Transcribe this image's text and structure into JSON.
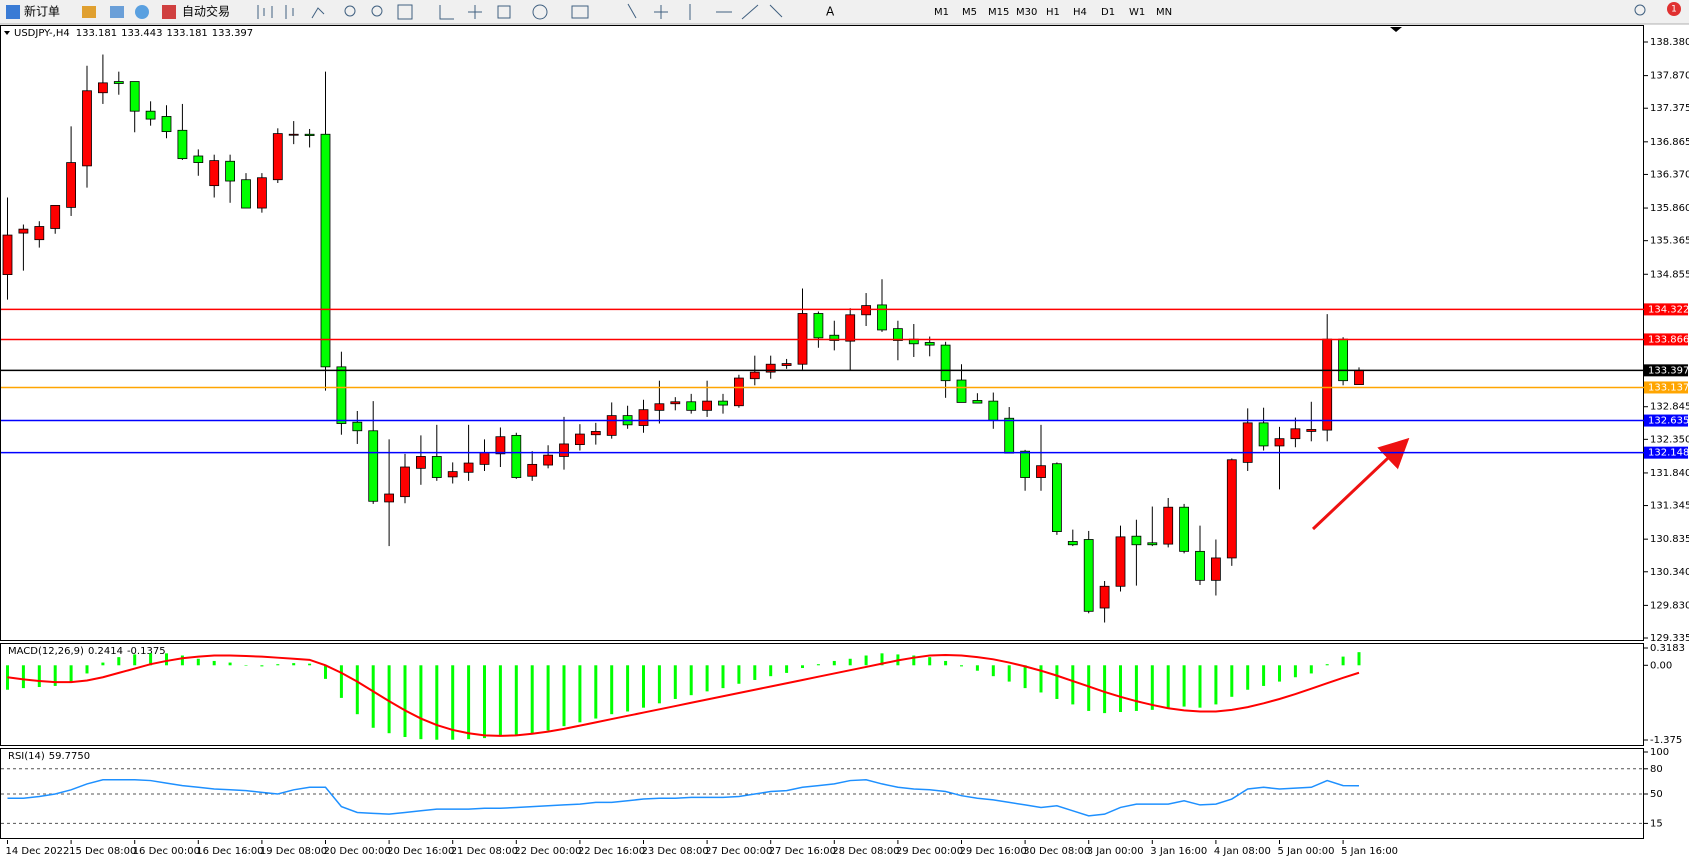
{
  "toolbar": {
    "new_order": "新订单",
    "auto_trading": "自动交易",
    "timeframes": [
      "M1",
      "M5",
      "M15",
      "M30",
      "H1",
      "H4",
      "D1",
      "W1",
      "MN"
    ],
    "notification_count": 1
  },
  "chart_data": [
    {
      "type": "candlestick",
      "title": "USDJPY-,H4",
      "up_color": "#ff0000",
      "down_color": "#00ff00",
      "categories": [
        "14 Dec 2022",
        null,
        null,
        null,
        "15 Dec 08:00",
        null,
        null,
        null,
        "16 Dec 00:00",
        null,
        null,
        null,
        "16 Dec 16:00",
        null,
        null,
        null,
        "19 Dec 08:00",
        null,
        null,
        null,
        "20 Dec 00:00",
        null,
        null,
        null,
        "20 Dec 16:00",
        null,
        null,
        null,
        "21 Dec 08:00",
        null,
        null,
        null,
        "22 Dec 00:00",
        null,
        null,
        null,
        "22 Dec 16:00",
        null,
        null,
        null,
        "23 Dec 08:00",
        null,
        null,
        null,
        "27 Dec 00:00",
        null,
        null,
        null,
        "27 Dec 16:00",
        null,
        null,
        null,
        "28 Dec 08:00",
        null,
        null,
        null,
        "29 Dec 00:00",
        null,
        null,
        null,
        "29 Dec 16:00",
        null,
        null,
        null,
        "30 Dec 08:00",
        null,
        null,
        null,
        "3 Jan 00:00",
        null,
        null,
        null,
        "3 Jan 16:00",
        null,
        null,
        null,
        "4 Jan 08:00",
        null,
        null,
        null,
        "5 Jan 00:00",
        null,
        null,
        null,
        "5 Jan 16:00",
        null
      ],
      "open": [
        134.85,
        135.48,
        135.38,
        135.55,
        135.87,
        136.5,
        137.61,
        137.78,
        137.78,
        137.33,
        137.25,
        137.04,
        136.65,
        136.2,
        136.57,
        136.29,
        135.86,
        136.29,
        136.98,
        136.98,
        136.98,
        133.45,
        132.61,
        132.48,
        131.4,
        131.48,
        131.91,
        132.09,
        131.78,
        131.85,
        131.97,
        132.13,
        132.41,
        131.79,
        131.96,
        132.09,
        132.27,
        132.42,
        132.41,
        132.71,
        132.56,
        132.79,
        132.89,
        132.92,
        132.79,
        132.93,
        132.86,
        133.27,
        133.37,
        133.47,
        133.49,
        134.26,
        133.93,
        133.84,
        134.24,
        134.39,
        134.03,
        133.87,
        133.82,
        133.78,
        133.25,
        132.94,
        132.93,
        132.67,
        132.17,
        131.77,
        131.98,
        130.8,
        130.83,
        129.79,
        130.12,
        130.88,
        130.78,
        130.76,
        131.32,
        130.65,
        130.21,
        130.55,
        132.0,
        132.6,
        132.25,
        132.36,
        132.47,
        132.49,
        133.87,
        133.181
      ],
      "high": [
        136.02,
        135.61,
        135.66,
        135.9,
        137.1,
        138.02,
        138.19,
        137.93,
        137.78,
        137.48,
        137.42,
        137.44,
        136.75,
        136.67,
        136.67,
        136.39,
        136.39,
        137.07,
        137.18,
        137.06,
        137.93,
        133.68,
        132.78,
        132.93,
        132.35,
        132.13,
        132.41,
        132.57,
        132.0,
        132.57,
        132.35,
        132.53,
        132.45,
        132.17,
        132.26,
        132.69,
        132.58,
        132.6,
        132.91,
        132.86,
        132.95,
        133.24,
        132.99,
        133.04,
        133.24,
        133.04,
        133.33,
        133.62,
        133.62,
        133.57,
        134.64,
        134.29,
        134.15,
        134.34,
        134.57,
        134.78,
        134.15,
        134.1,
        133.91,
        133.83,
        133.49,
        133.05,
        133.06,
        132.84,
        132.19,
        132.57,
        132.0,
        130.98,
        130.96,
        130.2,
        131.04,
        131.13,
        131.33,
        131.46,
        131.37,
        131.04,
        130.83,
        132.06,
        132.82,
        132.83,
        132.54,
        132.68,
        132.92,
        134.25,
        133.9,
        133.443
      ],
      "low": [
        134.47,
        134.91,
        135.26,
        135.47,
        135.74,
        136.17,
        137.44,
        137.58,
        137.01,
        137.11,
        136.92,
        136.59,
        136.35,
        136.02,
        135.94,
        135.86,
        135.79,
        136.24,
        136.83,
        136.78,
        133.09,
        132.42,
        132.28,
        131.37,
        130.73,
        131.38,
        131.66,
        131.72,
        131.68,
        131.72,
        131.87,
        131.93,
        131.75,
        131.72,
        131.91,
        131.89,
        132.18,
        132.27,
        132.36,
        132.51,
        132.45,
        132.59,
        132.79,
        132.74,
        132.69,
        132.74,
        132.83,
        133.17,
        133.27,
        133.42,
        133.41,
        133.74,
        133.7,
        133.39,
        134.07,
        133.98,
        133.55,
        133.6,
        133.61,
        132.98,
        132.91,
        132.9,
        132.51,
        132.14,
        131.57,
        131.57,
        130.9,
        130.73,
        129.71,
        129.57,
        130.04,
        130.13,
        130.73,
        130.71,
        130.62,
        130.14,
        129.98,
        130.43,
        131.87,
        132.18,
        131.59,
        132.23,
        132.32,
        132.32,
        133.17,
        133.181
      ],
      "close": [
        135.45,
        135.54,
        135.58,
        135.9,
        136.55,
        137.64,
        137.76,
        137.75,
        137.33,
        137.21,
        137.02,
        136.61,
        136.55,
        136.58,
        136.27,
        135.86,
        136.32,
        136.99,
        136.98,
        136.96,
        133.45,
        132.59,
        132.48,
        131.41,
        131.52,
        131.93,
        132.09,
        131.77,
        131.86,
        131.99,
        132.15,
        132.39,
        131.77,
        131.97,
        132.11,
        132.28,
        132.43,
        132.47,
        132.71,
        132.57,
        132.8,
        132.89,
        132.92,
        132.79,
        132.93,
        132.87,
        133.28,
        133.37,
        133.49,
        133.5,
        134.26,
        133.89,
        133.85,
        134.24,
        134.38,
        134.01,
        133.85,
        133.8,
        133.78,
        133.24,
        132.91,
        132.9,
        132.64,
        132.14,
        131.77,
        131.95,
        130.95,
        130.75,
        129.74,
        130.12,
        130.87,
        130.75,
        130.75,
        131.32,
        130.65,
        130.21,
        130.55,
        132.04,
        132.6,
        132.25,
        132.36,
        132.51,
        132.5,
        133.87,
        133.24,
        133.397
      ],
      "ylim": [
        129.335,
        138.38
      ],
      "yticks": [
        {
          "value": 138.38,
          "label": "138.380"
        },
        {
          "value": 137.87,
          "label": "137.870"
        },
        137.375,
        {
          "value": 136.865,
          "label": "136.865"
        },
        {
          "value": 136.37,
          "label": "136.370"
        },
        {
          "value": 135.86,
          "label": "135.860"
        },
        135.365,
        134.855,
        132.845,
        {
          "value": 132.35,
          "label": "132.350"
        },
        {
          "value": 131.84,
          "label": "131.840"
        },
        131.345,
        130.835,
        {
          "value": 130.34,
          "label": "130.340"
        },
        {
          "value": 129.83,
          "label": "129.830"
        },
        129.335
      ],
      "levels": [
        {
          "value": 134.322,
          "color": "#ff0000"
        },
        {
          "value": 133.866,
          "color": "#ff0000"
        },
        {
          "value": 133.397,
          "color": "#000000"
        },
        {
          "value": 133.137,
          "color": "#ffa500"
        },
        {
          "value": 132.635,
          "color": "#0000ff"
        },
        {
          "value": 132.148,
          "color": "#0000ff"
        }
      ]
    },
    {
      "type": "macd",
      "title": "MACD(12,26,9)",
      "histogram": {
        "color": "#00ff00",
        "values": [
          -0.45,
          -0.42,
          -0.4,
          -0.38,
          -0.3,
          -0.15,
          0.05,
          0.15,
          0.2,
          0.22,
          0.22,
          0.18,
          0.12,
          0.08,
          0.05,
          0.0,
          -0.02,
          0.02,
          0.04,
          0.03,
          -0.25,
          -0.6,
          -0.9,
          -1.15,
          -1.25,
          -1.32,
          -1.36,
          -1.37,
          -1.37,
          -1.36,
          -1.34,
          -1.3,
          -1.28,
          -1.25,
          -1.2,
          -1.12,
          -1.05,
          -0.98,
          -0.9,
          -0.85,
          -0.78,
          -0.7,
          -0.62,
          -0.55,
          -0.48,
          -0.42,
          -0.34,
          -0.27,
          -0.2,
          -0.14,
          -0.05,
          0.02,
          0.08,
          0.12,
          0.18,
          0.22,
          0.2,
          0.18,
          0.15,
          0.08,
          -0.02,
          -0.1,
          -0.2,
          -0.3,
          -0.42,
          -0.5,
          -0.62,
          -0.72,
          -0.84,
          -0.88,
          -0.86,
          -0.84,
          -0.82,
          -0.78,
          -0.76,
          -0.78,
          -0.72,
          -0.58,
          -0.45,
          -0.38,
          -0.3,
          -0.22,
          -0.15,
          0.02,
          0.16,
          0.2414
        ]
      },
      "signal": {
        "color": "#ff0000",
        "values": [
          -0.22,
          -0.26,
          -0.29,
          -0.31,
          -0.31,
          -0.28,
          -0.22,
          -0.14,
          -0.06,
          0.02,
          0.08,
          0.13,
          0.16,
          0.18,
          0.18,
          0.17,
          0.16,
          0.14,
          0.12,
          0.1,
          0.0,
          -0.14,
          -0.3,
          -0.48,
          -0.66,
          -0.83,
          -0.98,
          -1.1,
          -1.19,
          -1.25,
          -1.29,
          -1.3,
          -1.29,
          -1.26,
          -1.22,
          -1.17,
          -1.11,
          -1.05,
          -0.99,
          -0.93,
          -0.87,
          -0.81,
          -0.75,
          -0.69,
          -0.63,
          -0.57,
          -0.51,
          -0.45,
          -0.39,
          -0.33,
          -0.27,
          -0.21,
          -0.15,
          -0.09,
          -0.03,
          0.03,
          0.09,
          0.14,
          0.18,
          0.19,
          0.18,
          0.15,
          0.11,
          0.05,
          -0.02,
          -0.1,
          -0.19,
          -0.29,
          -0.39,
          -0.49,
          -0.58,
          -0.66,
          -0.73,
          -0.79,
          -0.83,
          -0.85,
          -0.85,
          -0.82,
          -0.77,
          -0.7,
          -0.62,
          -0.53,
          -0.43,
          -0.33,
          -0.23,
          -0.1375
        ]
      },
      "ylim": [
        -1.375,
        0.3183
      ],
      "yticks": [
        0.3183,
        {
          "value": 0,
          "label": "0.00"
        },
        -1.375
      ]
    },
    {
      "type": "rsi",
      "title": "RSI(14)",
      "current_label": "59.7750",
      "color": "#1e90ff",
      "values": [
        45,
        45,
        47,
        50,
        55,
        62,
        67,
        67,
        67,
        66,
        63,
        60,
        58,
        56,
        55,
        54,
        52,
        50,
        55,
        58,
        58,
        35,
        28,
        27,
        26,
        28,
        30,
        32,
        32,
        32,
        33,
        33,
        34,
        35,
        36,
        37,
        38,
        40,
        40,
        42,
        44,
        45,
        45,
        46,
        46,
        46,
        47,
        50,
        53,
        54,
        58,
        60,
        62,
        66,
        67,
        62,
        58,
        56,
        55,
        53,
        48,
        45,
        43,
        40,
        37,
        34,
        36,
        30,
        24,
        26,
        34,
        38,
        38,
        38,
        42,
        37,
        38,
        44,
        56,
        58,
        56,
        57,
        58,
        66,
        60,
        59.775
      ],
      "ylim": [
        0,
        100
      ],
      "yticks": [
        100,
        80,
        50,
        15
      ],
      "levels": [
        80,
        50,
        15
      ]
    }
  ]
}
